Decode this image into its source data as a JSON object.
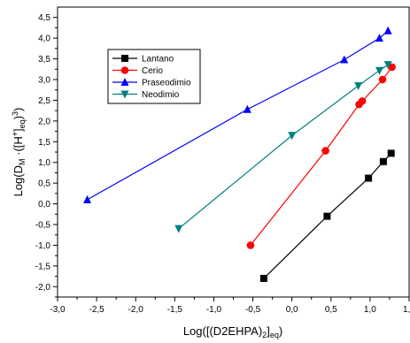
{
  "chart_data": {
    "type": "line",
    "title": "",
    "xlabel": "Log([(D2EHPA)",
    "xlabel_sub": "2",
    "xlabel_tail": "]",
    "xlabel_sub2": "eq",
    "xlabel_close": ")",
    "ylabel": "Log(D",
    "ylabel_sub": "M",
    "ylabel_mid": " ·([H",
    "ylabel_sup": "+",
    "ylabel_mid2": "]",
    "ylabel_sub2": "eq",
    "ylabel_mid3": ")",
    "ylabel_sup2": "3",
    "ylabel_tail": ")",
    "xlim": [
      -3.0,
      1.5
    ],
    "ylim": [
      -2.25,
      4.75
    ],
    "xticks": [
      "-3,0",
      "-2,5",
      "-2,0",
      "-1,5",
      "-1,0",
      "-0,5",
      "0,0",
      "0,5",
      "1,0",
      "1,5"
    ],
    "xtick_values": [
      -3.0,
      -2.5,
      -2.0,
      -1.5,
      -1.0,
      -0.5,
      0.0,
      0.5,
      1.0,
      1.5
    ],
    "yticks": [
      "-2,0",
      "-1,5",
      "-1,0",
      "-0,5",
      "0,0",
      "0,5",
      "1,0",
      "1,5",
      "2,0",
      "2,5",
      "3,0",
      "3,5",
      "4,0",
      "4,5"
    ],
    "ytick_values": [
      -2.0,
      -1.5,
      -1.0,
      -0.5,
      0.0,
      0.5,
      1.0,
      1.5,
      2.0,
      2.5,
      3.0,
      3.5,
      4.0,
      4.5
    ],
    "grid": false,
    "legend_position": "top-left",
    "series": [
      {
        "name": "Lantano",
        "color": "#000000",
        "marker": "square",
        "points": [
          [
            -0.36,
            -1.8
          ],
          [
            0.45,
            -0.3
          ],
          [
            0.98,
            0.62
          ],
          [
            1.17,
            1.02
          ],
          [
            1.27,
            1.22
          ]
        ]
      },
      {
        "name": "Cerio",
        "color": "#ff0000",
        "marker": "circle",
        "points": [
          [
            -0.53,
            -1.0
          ],
          [
            0.43,
            1.28
          ],
          [
            0.86,
            2.4
          ],
          [
            0.9,
            2.48
          ],
          [
            1.16,
            3.0
          ],
          [
            1.28,
            3.3
          ]
        ]
      },
      {
        "name": "Praseodimio",
        "color": "#0000ff",
        "marker": "triangle-up",
        "points": [
          [
            -2.62,
            0.1
          ],
          [
            -0.57,
            2.28
          ],
          [
            0.67,
            3.48
          ],
          [
            1.12,
            4.0
          ],
          [
            1.23,
            4.18
          ]
        ]
      },
      {
        "name": "Neodimio",
        "color": "#008080",
        "marker": "triangle-down",
        "points": [
          [
            -1.45,
            -0.6
          ],
          [
            0.0,
            1.65
          ],
          [
            0.85,
            2.85
          ],
          [
            1.12,
            3.22
          ],
          [
            1.23,
            3.36
          ]
        ]
      }
    ]
  }
}
